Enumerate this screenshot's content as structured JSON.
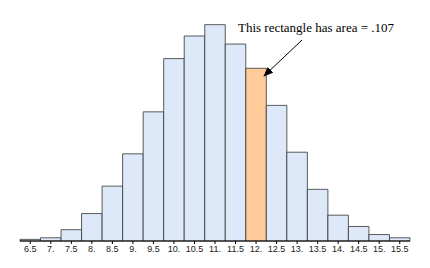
{
  "chart_data": {
    "type": "histogram",
    "annotations": [
      "This rectangle has area = .107"
    ],
    "bins": [
      6.25,
      6.75,
      7.25,
      7.75,
      8.25,
      8.75,
      9.25,
      9.75,
      10.25,
      10.75,
      11.25,
      11.75,
      12.25,
      12.75,
      13.25,
      13.75,
      14.25,
      14.75,
      15.25,
      15.75
    ],
    "values": [
      0.001,
      0.002,
      0.007,
      0.017,
      0.034,
      0.054,
      0.08,
      0.113,
      0.127,
      0.134,
      0.122,
      0.107,
      0.084,
      0.055,
      0.032,
      0.016,
      0.009,
      0.004,
      0.002
    ],
    "colors": [
      "#dde9f8",
      "#dde9f8",
      "#dde9f8",
      "#dde9f8",
      "#dde9f8",
      "#dde9f8",
      "#dde9f8",
      "#dde9f8",
      "#dde9f8",
      "#dde9f8",
      "#dde9f8",
      "#ffcc99",
      "#dde9f8",
      "#dde9f8",
      "#dde9f8",
      "#dde9f8",
      "#dde9f8",
      "#dde9f8",
      "#dde9f8"
    ],
    "xlim": [
      6.25,
      15.75
    ],
    "xticks": [
      6.5,
      {
        "value": 7,
        "label": "7."
      },
      7.5,
      {
        "value": 8,
        "label": "8."
      },
      8.5,
      {
        "value": 9,
        "label": "9."
      },
      9.5,
      {
        "value": 10,
        "label": "10."
      },
      10.5,
      {
        "value": 11,
        "label": "11."
      },
      11.5,
      {
        "value": 12,
        "label": "12."
      },
      12.5,
      {
        "value": 13,
        "label": "13."
      },
      13.5,
      {
        "value": 14,
        "label": "14."
      },
      14.5,
      {
        "value": 15,
        "label": "15."
      },
      15.5
    ],
    "ylim": [
      0,
      0.14
    ],
    "tick_labels": "x",
    "grid": false
  }
}
